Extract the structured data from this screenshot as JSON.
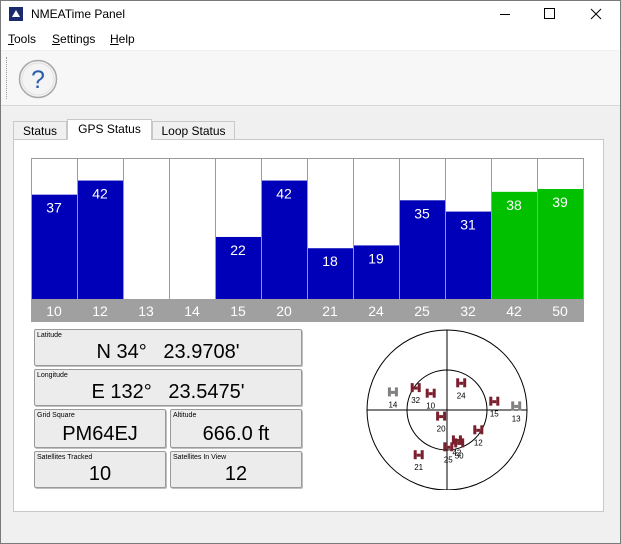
{
  "window": {
    "title": "NMEATime Panel"
  },
  "menu": {
    "tools": "Tools",
    "settings": "Settings",
    "help": "Help"
  },
  "tabs": [
    {
      "label": "Status",
      "active": false
    },
    {
      "label": "GPS Status",
      "active": true
    },
    {
      "label": "Loop Status",
      "active": false
    }
  ],
  "colors": {
    "bar_blue": "#0000b8",
    "bar_green": "#00c000",
    "label_strip": "#a0a0a0",
    "sat_marker": "#7a1f2e",
    "sat_marker_dim": "#808080"
  },
  "chart_data": {
    "type": "bar",
    "categories": [
      "10",
      "12",
      "13",
      "14",
      "15",
      "20",
      "21",
      "24",
      "25",
      "32",
      "42",
      "50"
    ],
    "values": [
      37,
      42,
      null,
      null,
      22,
      42,
      18,
      19,
      35,
      31,
      38,
      39
    ],
    "bar_colors": [
      "blue",
      "blue",
      "none",
      "none",
      "blue",
      "blue",
      "blue",
      "blue",
      "blue",
      "blue",
      "green",
      "green"
    ],
    "ylim": [
      0,
      50
    ]
  },
  "position": {
    "latitude_label": "Latitude",
    "latitude_value": "N 34°   23.9708'",
    "longitude_label": "Longitude",
    "longitude_value": "E 132°   23.5475'",
    "grid_label": "Grid Square",
    "grid_value": "PM64EJ",
    "altitude_label": "Altitude",
    "altitude_value": "666.0 ft",
    "tracked_label": "Satellites Tracked",
    "tracked_value": "10",
    "inview_label": "Satellites In View",
    "inview_value": "12"
  },
  "skyplot": {
    "satellites": [
      {
        "prn": "14",
        "azimuth": 288,
        "elevation": 26,
        "tracked": false
      },
      {
        "prn": "32",
        "azimuth": 305,
        "elevation": 47,
        "tracked": true
      },
      {
        "prn": "10",
        "azimuth": 315,
        "elevation": 64,
        "tracked": true
      },
      {
        "prn": "24",
        "azimuth": 28,
        "elevation": 56,
        "tracked": true
      },
      {
        "prn": "20",
        "azimuth": 222,
        "elevation": 80,
        "tracked": true
      },
      {
        "prn": "15",
        "azimuth": 80,
        "elevation": 36,
        "tracked": true
      },
      {
        "prn": "13",
        "azimuth": 87,
        "elevation": 12,
        "tracked": false
      },
      {
        "prn": "12",
        "azimuth": 123,
        "elevation": 48,
        "tracked": true
      },
      {
        "prn": "42",
        "azimuth": 162,
        "elevation": 54,
        "tracked": true
      },
      {
        "prn": "50",
        "azimuth": 160,
        "elevation": 50,
        "tracked": true
      },
      {
        "prn": "25",
        "azimuth": 178,
        "elevation": 48,
        "tracked": true
      },
      {
        "prn": "21",
        "azimuth": 212,
        "elevation": 30,
        "tracked": true
      }
    ]
  }
}
